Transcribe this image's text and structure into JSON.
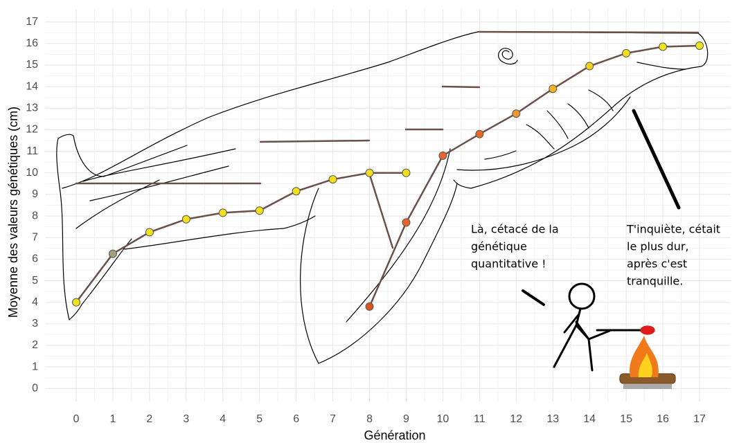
{
  "chart_data": {
    "type": "line",
    "xlabel": "Génération",
    "ylabel": "Moyenne des valeurs génétiques (cm)",
    "xlim": [
      -0.85,
      17.85
    ],
    "ylim": [
      -0.6,
      17.6
    ],
    "xticks": [
      0,
      1,
      2,
      3,
      4,
      5,
      6,
      7,
      8,
      9,
      10,
      11,
      12,
      13,
      14,
      15,
      16,
      17
    ],
    "yticks": [
      0,
      1,
      2,
      3,
      4,
      5,
      6,
      7,
      8,
      9,
      10,
      11,
      12,
      13,
      14,
      15,
      16,
      17
    ],
    "grid": true,
    "line_color": "#6b5049",
    "series": [
      {
        "x": [
          0,
          1,
          2,
          3,
          4,
          5,
          6,
          7,
          8,
          9
        ],
        "values": [
          4.0,
          6.25,
          7.25,
          7.85,
          8.15,
          8.25,
          9.15,
          9.7,
          10.0,
          10.0
        ],
        "point_colors": [
          "#f2e01c",
          "#a8a07a",
          "#f2e01c",
          "#f2e01c",
          "#f2e01c",
          "#f2e01c",
          "#f2e01c",
          "#f2e01c",
          "#f2e01c",
          "#f2e01c"
        ]
      },
      {
        "x": [
          8,
          9,
          10,
          11,
          12,
          13,
          14,
          15,
          16,
          17
        ],
        "values": [
          3.8,
          7.7,
          10.8,
          11.8,
          12.75,
          13.9,
          14.95,
          15.55,
          15.85,
          15.9
        ],
        "point_colors": [
          "#d9541e",
          "#e8642a",
          "#e8642a",
          "#e56a2c",
          "#f0962a",
          "#f2b224",
          "#f2cf20",
          "#f2df1c",
          "#f2e61b",
          "#f2e61b"
        ]
      }
    ],
    "annotations": [
      [
        "Là, cétacé de la",
        "génétique",
        "quantitative !"
      ],
      [
        "T'inquiète, cétait",
        "le plus dur,",
        "après c'est",
        "tranquille."
      ]
    ]
  }
}
